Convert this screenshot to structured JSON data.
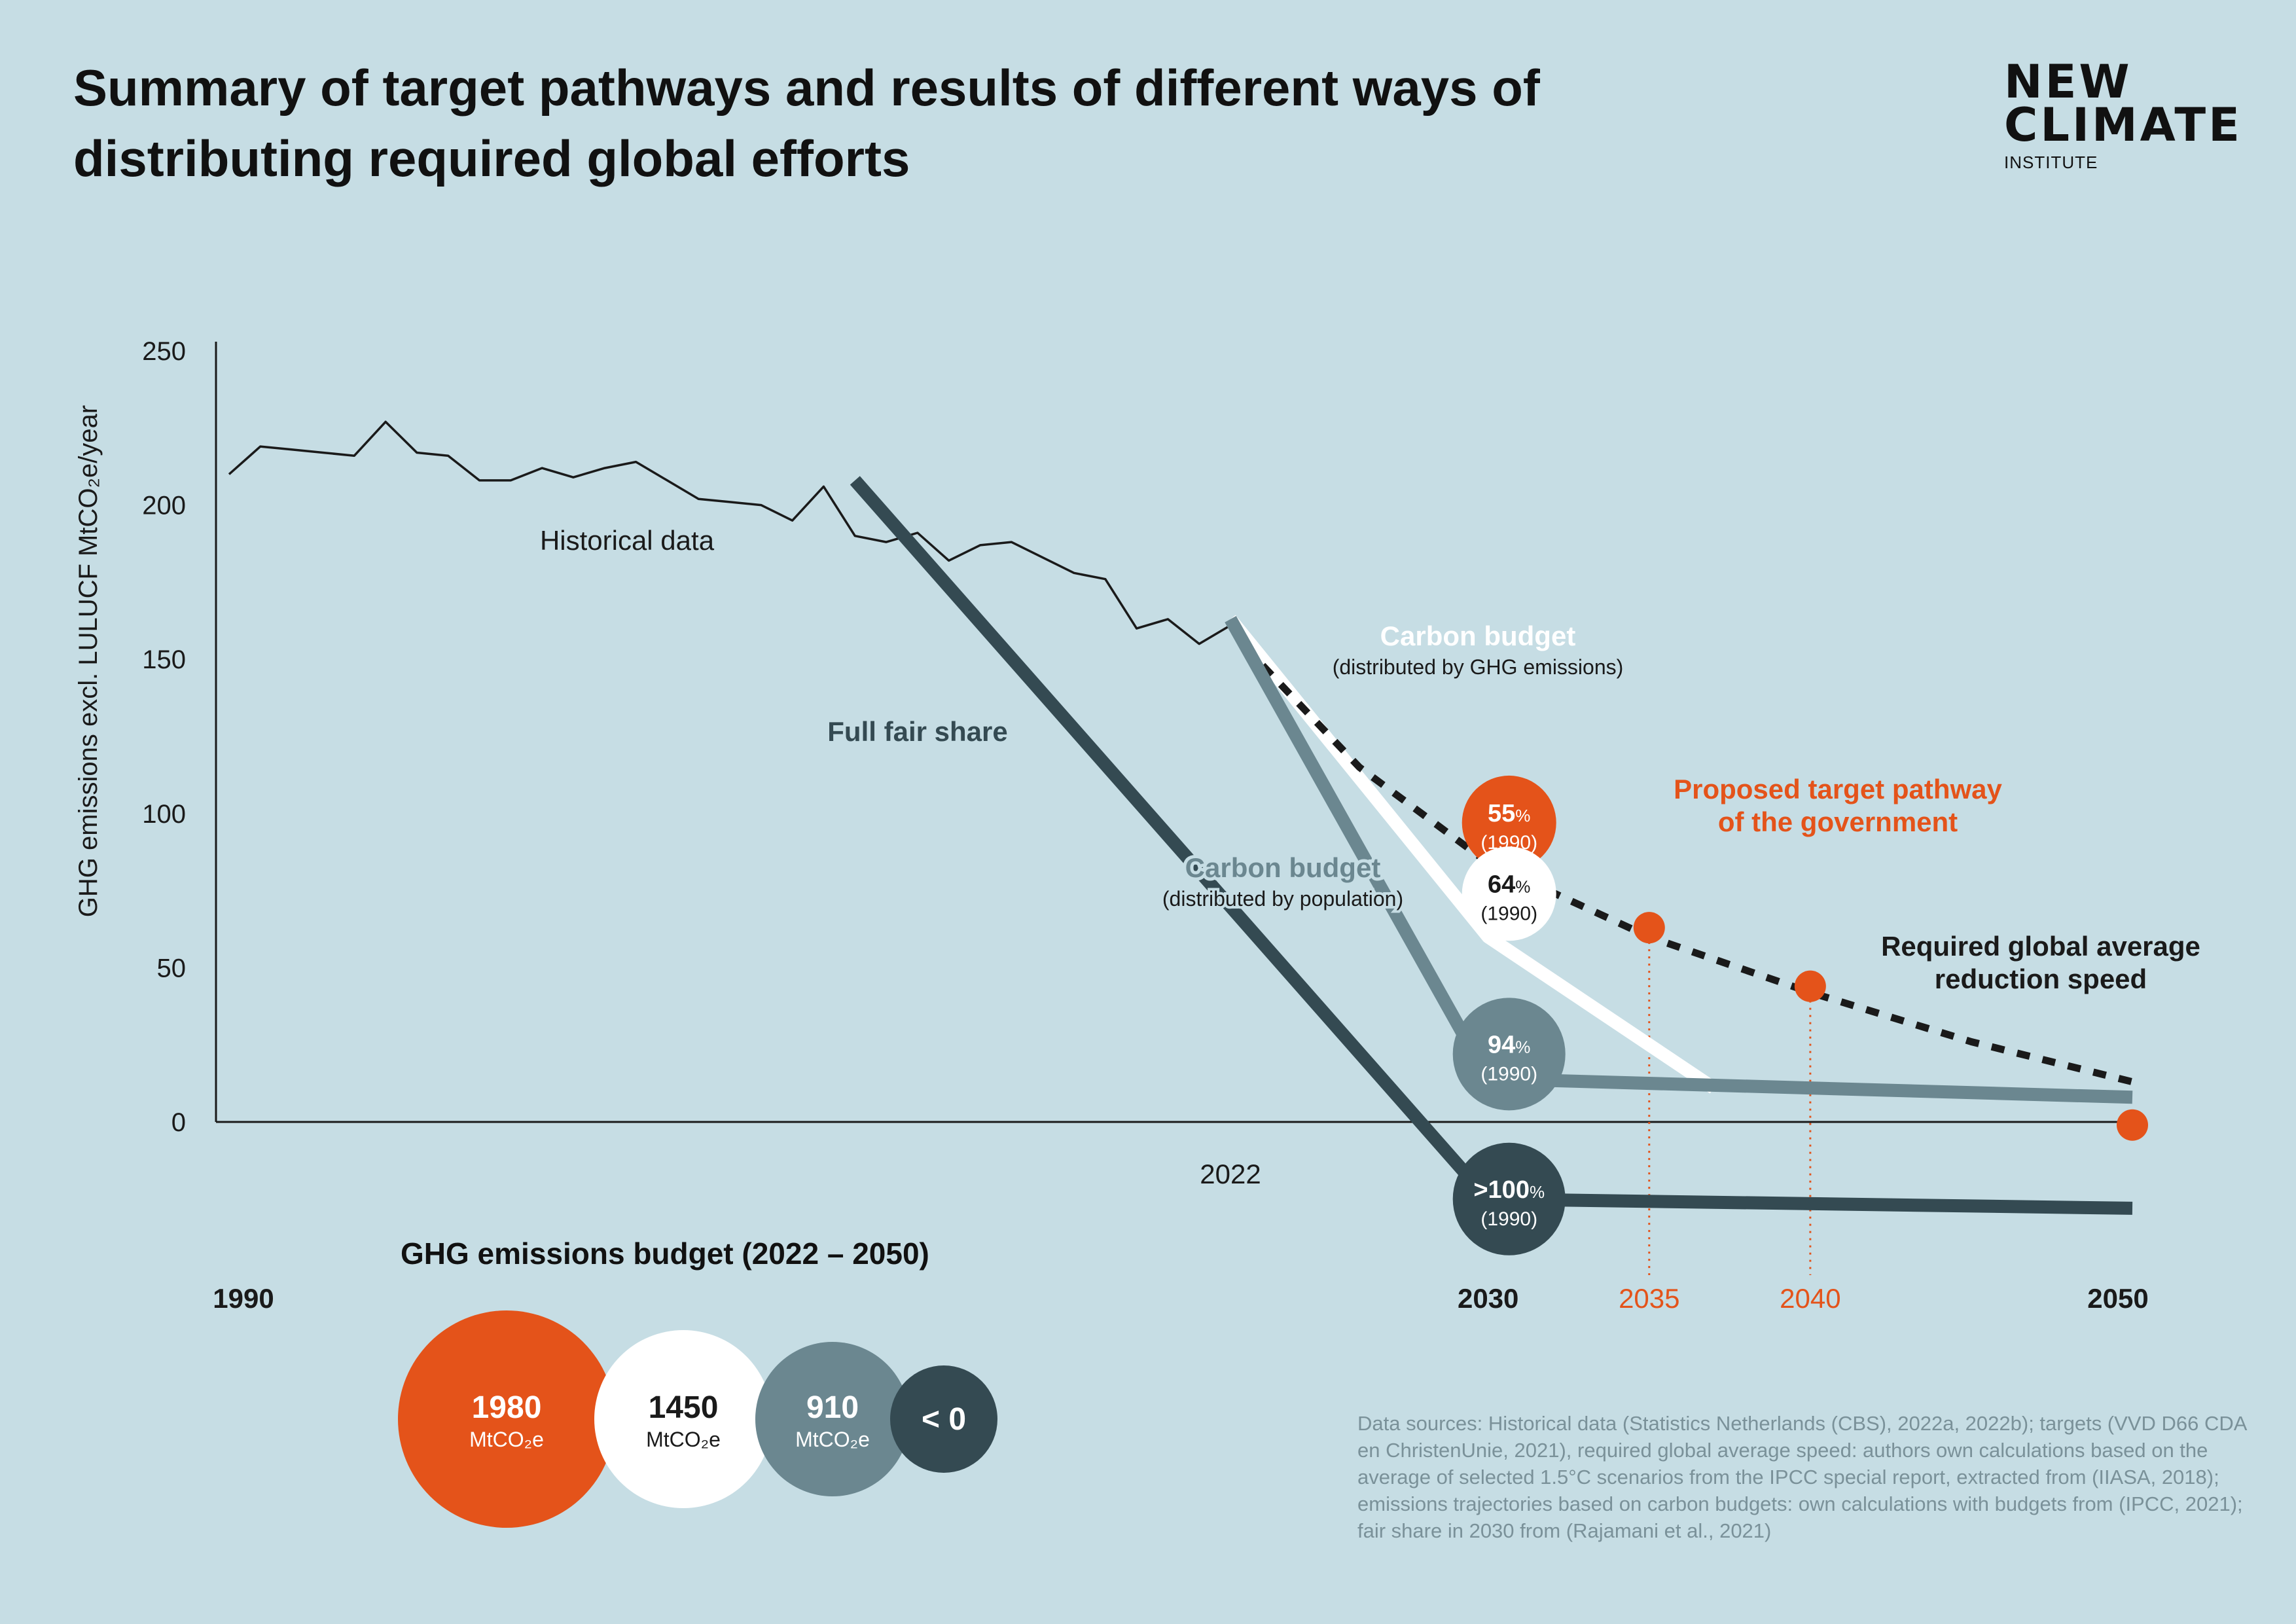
{
  "title": "Summary of target pathways and results of different ways of distributing required global efforts",
  "logo": {
    "line1": "NEW",
    "line2": "CLIMATE",
    "line3": "INSTITUTE"
  },
  "chart_data": {
    "type": "line",
    "ylabel": "GHG emissions excl. LULUCF MtCO₂e/year",
    "ylim": [
      0,
      250
    ],
    "yticks": [
      0,
      50,
      100,
      150,
      200,
      250
    ],
    "xlim": [
      1990,
      2050
    ],
    "xticks": [
      {
        "value": 1990,
        "label": "1990",
        "bold": true,
        "color": "#1a1a1a"
      },
      {
        "value": 2022,
        "label": "2022",
        "bold": false,
        "color": "#1a1a1a"
      },
      {
        "value": 2030,
        "label": "2030",
        "bold": true,
        "color": "#1a1a1a"
      },
      {
        "value": 2035,
        "label": "2035",
        "bold": false,
        "color": "#e4531a"
      },
      {
        "value": 2040,
        "label": "2040",
        "bold": false,
        "color": "#e4531a"
      },
      {
        "value": 2050,
        "label": "2050",
        "bold": true,
        "color": "#1a1a1a"
      }
    ],
    "series": [
      {
        "key": "historical",
        "name": "Historical data",
        "color": "#1a1a1a",
        "style": "thin",
        "x": [
          1990,
          1991,
          1992,
          1993,
          1994,
          1995,
          1996,
          1997,
          1998,
          1999,
          2000,
          2001,
          2002,
          2003,
          2004,
          2005,
          2006,
          2007,
          2008,
          2009,
          2010,
          2011,
          2012,
          2013,
          2014,
          2015,
          2016,
          2017,
          2018,
          2019,
          2020,
          2021,
          2022
        ],
        "y": [
          210,
          219,
          218,
          217,
          216,
          227,
          217,
          216,
          208,
          208,
          212,
          209,
          212,
          214,
          208,
          202,
          201,
          200,
          195,
          206,
          190,
          188,
          191,
          182,
          187,
          188,
          183,
          178,
          176,
          160,
          163,
          155,
          161
        ]
      },
      {
        "key": "fair_share",
        "name": "Full fair share",
        "color": "#344a52",
        "style": "thick",
        "x": [
          2010,
          2030,
          2050
        ],
        "y": [
          208,
          -25,
          -28
        ]
      },
      {
        "key": "cb_population",
        "name": "Carbon budget",
        "sub": "(distributed by population)",
        "color": "#6b8790",
        "style": "thick",
        "x": [
          2022,
          2030,
          2050
        ],
        "y": [
          163,
          14,
          8
        ]
      },
      {
        "key": "cb_ghg",
        "name": "Carbon budget",
        "sub": "(distributed by GHG emissions)",
        "color": "#ffffff",
        "style": "thick",
        "x": [
          2022,
          2030,
          2037
        ],
        "y": [
          163,
          60,
          11
        ]
      },
      {
        "key": "global_speed",
        "name": "Required global average reduction speed",
        "color": "#1a1a1a",
        "style": "dashed",
        "x": [
          2023,
          2026,
          2030,
          2035,
          2040,
          2045,
          2050
        ],
        "y": [
          148,
          115,
          84,
          60,
          42,
          26,
          13
        ]
      }
    ],
    "target_points": [
      {
        "year": 2035,
        "value": 63
      },
      {
        "year": 2040,
        "value": 44
      },
      {
        "year": 2050,
        "value": -1
      }
    ],
    "badges": [
      {
        "pct": "55",
        "base": "(1990)",
        "level": 97,
        "bg": "#e4531a",
        "fg": "#ffffff",
        "prefix": "",
        "r": 72
      },
      {
        "pct": "64",
        "base": "(1990)",
        "level": 74,
        "bg": "#ffffff",
        "fg": "#1a1a1a",
        "prefix": "",
        "r": 72
      },
      {
        "pct": "94",
        "base": "(1990)",
        "level": 22,
        "bg": "#6b8790",
        "fg": "#ffffff",
        "prefix": "",
        "r": 86
      },
      {
        "pct": "100",
        "base": "(1990)",
        "level": -25,
        "bg": "#344a52",
        "fg": "#ffffff",
        "prefix": ">",
        "r": 86
      }
    ],
    "annotations": [
      {
        "key": "historical",
        "text": "Historical data"
      },
      {
        "key": "fair_share",
        "text": "Full fair share"
      },
      {
        "key": "cb_ghg",
        "text": "Carbon budget",
        "sub": "(distributed by GHG emissions)"
      },
      {
        "key": "cb_pop",
        "text": "Carbon budget",
        "sub": "(distributed by population)"
      },
      {
        "key": "proposed",
        "text": "Proposed target pathway",
        "text2": "of the government"
      },
      {
        "key": "global_speed",
        "text": "Required global average",
        "text2": "reduction speed"
      }
    ],
    "pct_unit": "%",
    "colors": {
      "accent": "#e4531a",
      "dark": "#344a52",
      "mid": "#6b8790",
      "light": "#ffffff",
      "background": "#c6dde4"
    }
  },
  "budget": {
    "title": "GHG emissions budget (2022 – 2050)",
    "items": [
      {
        "value": "1980",
        "unit": "MtCO₂e",
        "bg": "#e4531a",
        "fg": "#ffffff"
      },
      {
        "value": "1450",
        "unit": "MtCO₂e",
        "bg": "#ffffff",
        "fg": "#1a1a1a"
      },
      {
        "value": "910",
        "unit": "MtCO₂e",
        "bg": "#6b8790",
        "fg": "#ffffff"
      },
      {
        "value": "< 0",
        "unit": "",
        "bg": "#344a52",
        "fg": "#ffffff"
      }
    ]
  },
  "sources": "Data sources: Historical data (Statistics Netherlands (CBS), 2022a, 2022b); targets (VVD D66 CDA en ChristenUnie, 2021), required global average speed: authors own calculations based on the average of selected 1.5°C scenarios from the IPCC special report, extracted from (IIASA, 2018); emissions trajectories based on carbon budgets: own calculations with budgets from (IPCC, 2021); fair share in 2030 from (Rajamani et al., 2021)"
}
